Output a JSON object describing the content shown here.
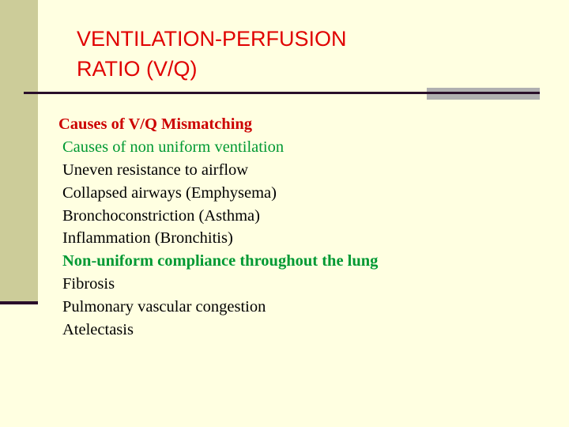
{
  "title": {
    "line1": "VENTILATION-PERFUSION",
    "line2": "RATIO (V/Q)"
  },
  "content": {
    "heading": "Causes of V/Q Mismatching",
    "items": [
      {
        "text": "Causes of non uniform ventilation",
        "style": "green"
      },
      {
        "text": "Uneven resistance to airflow",
        "style": "black"
      },
      {
        "text": "Collapsed airways (Emphysema)",
        "style": "black"
      },
      {
        "text": "Bronchoconstriction (Asthma)",
        "style": "black"
      },
      {
        "text": "Inflammation (Bronchitis)",
        "style": "black"
      },
      {
        "text": "Non-uniform compliance throughout the lung",
        "style": "green-bold"
      },
      {
        "text": "Fibrosis",
        "style": "black"
      },
      {
        "text": "Pulmonary vascular congestion",
        "style": "black"
      },
      {
        "text": "Atelectasis",
        "style": "black"
      }
    ]
  },
  "colors": {
    "title": "#e00000",
    "heading": "#cc0000",
    "subheading": "#009933",
    "background": "#ffffe1",
    "sidebar": "#cccc99"
  }
}
